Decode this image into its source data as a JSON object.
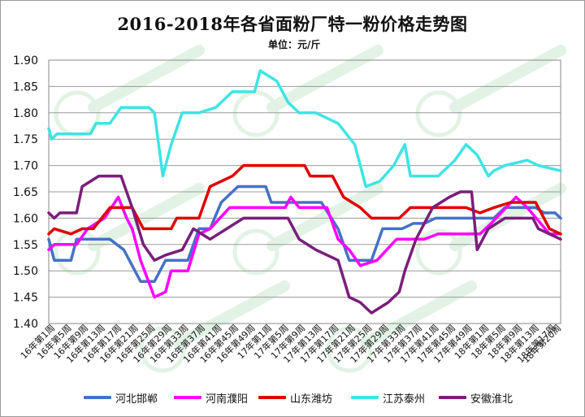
{
  "chart_data": {
    "type": "line",
    "title": "2016-2018年各省面粉厂特一粉价格走势图",
    "subtitle": "单位：元/斤",
    "ylim": [
      1.4,
      1.9
    ],
    "yticks": [
      "1.90",
      "1.85",
      "1.80",
      "1.75",
      "1.70",
      "1.65",
      "1.60",
      "1.55",
      "1.50",
      "1.45",
      "1.40"
    ],
    "xticks": [
      "16年第1周",
      "16年第5周",
      "16年第9周",
      "16年第13周",
      "16年第17周",
      "16年第21周",
      "16年第25周",
      "16年第29周",
      "16年第33周",
      "16年第37周",
      "16年第41周",
      "16年第45周",
      "16年第49周",
      "17年第1周",
      "17年第5周",
      "17年第9周",
      "17年第13周",
      "17年第17周",
      "17年第21周",
      "17年第25周",
      "17年第29周",
      "17年第33周",
      "17年第37周",
      "17年第41周",
      "17年第45周",
      "17年第49周",
      "18年第1周",
      "18年第5周",
      "18年第9周",
      "18年第13周",
      "18年第17周",
      "18年第20周"
    ],
    "grid": true,
    "legend_position": "bottom",
    "series": [
      {
        "name": "河北邯郸",
        "color": "#4472C4",
        "points": [
          [
            0,
            1.56
          ],
          [
            2,
            1.52
          ],
          [
            8,
            1.52
          ],
          [
            10,
            1.56
          ],
          [
            22,
            1.56
          ],
          [
            27,
            1.54
          ],
          [
            33,
            1.48
          ],
          [
            38,
            1.48
          ],
          [
            42,
            1.52
          ],
          [
            50,
            1.52
          ],
          [
            54,
            1.58
          ],
          [
            58,
            1.58
          ],
          [
            62,
            1.63
          ],
          [
            68,
            1.66
          ],
          [
            78,
            1.66
          ],
          [
            80,
            1.63
          ],
          [
            98,
            1.63
          ],
          [
            104,
            1.58
          ],
          [
            108,
            1.52
          ],
          [
            116,
            1.52
          ],
          [
            120,
            1.58
          ],
          [
            127,
            1.58
          ],
          [
            131,
            1.59
          ],
          [
            135,
            1.59
          ],
          [
            139,
            1.6
          ],
          [
            160,
            1.6
          ],
          [
            164,
            1.62
          ],
          [
            175,
            1.62
          ],
          [
            178,
            1.61
          ],
          [
            182,
            1.61
          ],
          [
            184,
            1.6
          ]
        ]
      },
      {
        "name": "河南濮阳",
        "color": "#FF00FF",
        "points": [
          [
            0,
            1.54
          ],
          [
            2,
            1.55
          ],
          [
            10,
            1.55
          ],
          [
            14,
            1.58
          ],
          [
            20,
            1.6
          ],
          [
            25,
            1.64
          ],
          [
            28,
            1.6
          ],
          [
            30,
            1.58
          ],
          [
            33,
            1.52
          ],
          [
            38,
            1.45
          ],
          [
            42,
            1.46
          ],
          [
            44,
            1.5
          ],
          [
            50,
            1.5
          ],
          [
            54,
            1.57
          ],
          [
            58,
            1.58
          ],
          [
            65,
            1.62
          ],
          [
            85,
            1.62
          ],
          [
            87,
            1.64
          ],
          [
            90,
            1.62
          ],
          [
            100,
            1.62
          ],
          [
            104,
            1.56
          ],
          [
            108,
            1.54
          ],
          [
            112,
            1.51
          ],
          [
            118,
            1.52
          ],
          [
            125,
            1.56
          ],
          [
            135,
            1.56
          ],
          [
            140,
            1.57
          ],
          [
            155,
            1.57
          ],
          [
            159,
            1.59
          ],
          [
            168,
            1.64
          ],
          [
            172,
            1.62
          ],
          [
            180,
            1.57
          ],
          [
            184,
            1.57
          ]
        ]
      },
      {
        "name": "山东潍坊",
        "color": "#E00000",
        "points": [
          [
            0,
            1.57
          ],
          [
            2,
            1.58
          ],
          [
            8,
            1.57
          ],
          [
            12,
            1.58
          ],
          [
            16,
            1.58
          ],
          [
            22,
            1.62
          ],
          [
            30,
            1.62
          ],
          [
            34,
            1.58
          ],
          [
            44,
            1.58
          ],
          [
            46,
            1.6
          ],
          [
            54,
            1.6
          ],
          [
            58,
            1.66
          ],
          [
            66,
            1.68
          ],
          [
            70,
            1.7
          ],
          [
            92,
            1.7
          ],
          [
            94,
            1.68
          ],
          [
            102,
            1.68
          ],
          [
            106,
            1.64
          ],
          [
            112,
            1.62
          ],
          [
            116,
            1.6
          ],
          [
            126,
            1.6
          ],
          [
            130,
            1.62
          ],
          [
            136,
            1.62
          ],
          [
            140,
            1.62
          ],
          [
            150,
            1.62
          ],
          [
            155,
            1.61
          ],
          [
            160,
            1.62
          ],
          [
            166,
            1.63
          ],
          [
            175,
            1.63
          ],
          [
            178,
            1.6
          ],
          [
            180,
            1.58
          ],
          [
            184,
            1.57
          ]
        ]
      },
      {
        "name": "江苏泰州",
        "color": "#3EE4E4",
        "points": [
          [
            0,
            1.77
          ],
          [
            1,
            1.75
          ],
          [
            3,
            1.76
          ],
          [
            8,
            1.76
          ],
          [
            15,
            1.76
          ],
          [
            17,
            1.78
          ],
          [
            22,
            1.78
          ],
          [
            26,
            1.81
          ],
          [
            32,
            1.81
          ],
          [
            36,
            1.81
          ],
          [
            38,
            1.8
          ],
          [
            41,
            1.68
          ],
          [
            44,
            1.74
          ],
          [
            48,
            1.8
          ],
          [
            54,
            1.8
          ],
          [
            60,
            1.81
          ],
          [
            66,
            1.84
          ],
          [
            74,
            1.84
          ],
          [
            76,
            1.88
          ],
          [
            82,
            1.86
          ],
          [
            86,
            1.82
          ],
          [
            90,
            1.8
          ],
          [
            96,
            1.8
          ],
          [
            104,
            1.78
          ],
          [
            110,
            1.74
          ],
          [
            114,
            1.66
          ],
          [
            119,
            1.67
          ],
          [
            124,
            1.7
          ],
          [
            128,
            1.74
          ],
          [
            130,
            1.68
          ],
          [
            140,
            1.68
          ],
          [
            146,
            1.71
          ],
          [
            150,
            1.74
          ],
          [
            154,
            1.72
          ],
          [
            158,
            1.68
          ],
          [
            160,
            1.69
          ],
          [
            164,
            1.7
          ],
          [
            172,
            1.71
          ],
          [
            176,
            1.7
          ],
          [
            184,
            1.69
          ]
        ]
      },
      {
        "name": "安徽淮北",
        "color": "#7A1E7A",
        "points": [
          [
            0,
            1.61
          ],
          [
            2,
            1.6
          ],
          [
            4,
            1.61
          ],
          [
            10,
            1.61
          ],
          [
            12,
            1.66
          ],
          [
            18,
            1.68
          ],
          [
            26,
            1.68
          ],
          [
            30,
            1.62
          ],
          [
            34,
            1.55
          ],
          [
            38,
            1.52
          ],
          [
            42,
            1.53
          ],
          [
            48,
            1.54
          ],
          [
            52,
            1.58
          ],
          [
            58,
            1.56
          ],
          [
            64,
            1.58
          ],
          [
            70,
            1.6
          ],
          [
            86,
            1.6
          ],
          [
            90,
            1.56
          ],
          [
            96,
            1.54
          ],
          [
            104,
            1.52
          ],
          [
            108,
            1.45
          ],
          [
            112,
            1.44
          ],
          [
            116,
            1.42
          ],
          [
            122,
            1.44
          ],
          [
            126,
            1.46
          ],
          [
            128,
            1.5
          ],
          [
            132,
            1.56
          ],
          [
            138,
            1.62
          ],
          [
            144,
            1.64
          ],
          [
            148,
            1.65
          ],
          [
            152,
            1.65
          ],
          [
            154,
            1.54
          ],
          [
            158,
            1.58
          ],
          [
            164,
            1.6
          ],
          [
            174,
            1.6
          ],
          [
            176,
            1.58
          ],
          [
            184,
            1.56
          ]
        ]
      }
    ]
  }
}
